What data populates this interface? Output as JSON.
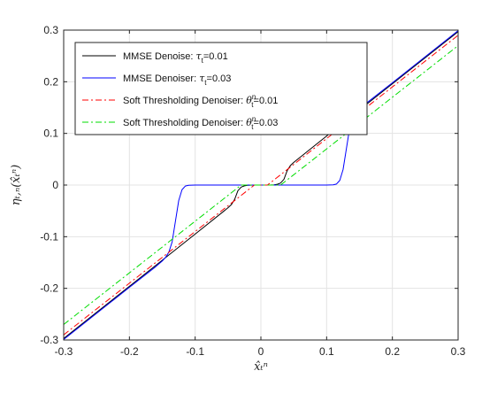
{
  "chart_data": {
    "type": "line",
    "title": "",
    "xlabel": "x̂ₜⁿ",
    "ylabel": "ηₜ,ₙ(x̂ₜⁿ)",
    "xlim": [
      -0.3,
      0.3
    ],
    "ylim": [
      -0.3,
      0.3
    ],
    "xticks": [
      "-0.3",
      "-0.2",
      "-0.1",
      "0",
      "0.1",
      "0.2",
      "0.3"
    ],
    "yticks": [
      "0.3",
      "0.2",
      "0.1",
      "0",
      "-0.1",
      "-0.2",
      "-0.3"
    ],
    "grid": true,
    "legend_position": "top-left",
    "series": [
      {
        "name": "MMSE Denoise: τt=0.01",
        "legend_main": "MMSE Denoise: ",
        "legend_sym": "τ",
        "legend_sub": "t",
        "legend_sup": "",
        "legend_val": "=0.01",
        "color": "#000000",
        "style": "solid",
        "x": [
          -0.3,
          -0.2,
          -0.1,
          -0.05,
          -0.045,
          -0.04,
          -0.035,
          -0.03,
          -0.025,
          -0.02,
          -0.015,
          -0.01,
          0.0,
          0.01,
          0.015,
          0.02,
          0.025,
          0.03,
          0.035,
          0.04,
          0.045,
          0.05,
          0.1,
          0.2,
          0.3
        ],
        "y": [
          -0.297,
          -0.196,
          -0.095,
          -0.044,
          -0.038,
          -0.028,
          -0.011,
          -0.004,
          -0.0015,
          -0.0005,
          -0.0002,
          -0.0001,
          0.0,
          0.0001,
          0.0002,
          0.0005,
          0.0015,
          0.004,
          0.011,
          0.028,
          0.038,
          0.044,
          0.095,
          0.196,
          0.297
        ]
      },
      {
        "name": "MMSE Denoiser: τt=0.03",
        "legend_main": "MMSE Denoiser: ",
        "legend_sym": "τ",
        "legend_sub": "t",
        "legend_sup": "",
        "legend_val": "=0.03",
        "color": "#0000ff",
        "style": "solid",
        "x": [
          -0.3,
          -0.2,
          -0.16,
          -0.15,
          -0.145,
          -0.14,
          -0.135,
          -0.13,
          -0.125,
          -0.12,
          -0.115,
          -0.11,
          -0.1,
          0.0,
          0.1,
          0.11,
          0.115,
          0.12,
          0.125,
          0.13,
          0.135,
          0.14,
          0.145,
          0.15,
          0.16,
          0.2,
          0.3
        ],
        "y": [
          -0.299,
          -0.198,
          -0.158,
          -0.147,
          -0.14,
          -0.13,
          -0.11,
          -0.07,
          -0.03,
          -0.009,
          -0.002,
          -0.0004,
          0.0,
          0.0,
          0.0,
          0.0004,
          0.002,
          0.009,
          0.03,
          0.07,
          0.11,
          0.13,
          0.14,
          0.147,
          0.158,
          0.198,
          0.299
        ]
      },
      {
        "name": "Soft Thresholding Denoiser: θtn=0.01",
        "legend_main": "Soft Thresholding Denoiser: ",
        "legend_sym": "θ",
        "legend_sub": "t",
        "legend_sup": "n",
        "legend_val": "=0.01",
        "color": "#ff0000",
        "style": "dashdot",
        "x": [
          -0.3,
          -0.01,
          0.01,
          0.3
        ],
        "y": [
          -0.29,
          0.0,
          0.0,
          0.29
        ]
      },
      {
        "name": "Soft Thresholding Denoiser: θtn=0.03",
        "legend_main": "Soft Thresholding Denoiser: ",
        "legend_sym": "θ",
        "legend_sub": "t",
        "legend_sup": "n",
        "legend_val": "=0.03",
        "color": "#00dd00",
        "style": "dashdot",
        "x": [
          -0.3,
          -0.03,
          0.03,
          0.3
        ],
        "y": [
          -0.27,
          0.0,
          0.0,
          0.27
        ]
      }
    ]
  }
}
